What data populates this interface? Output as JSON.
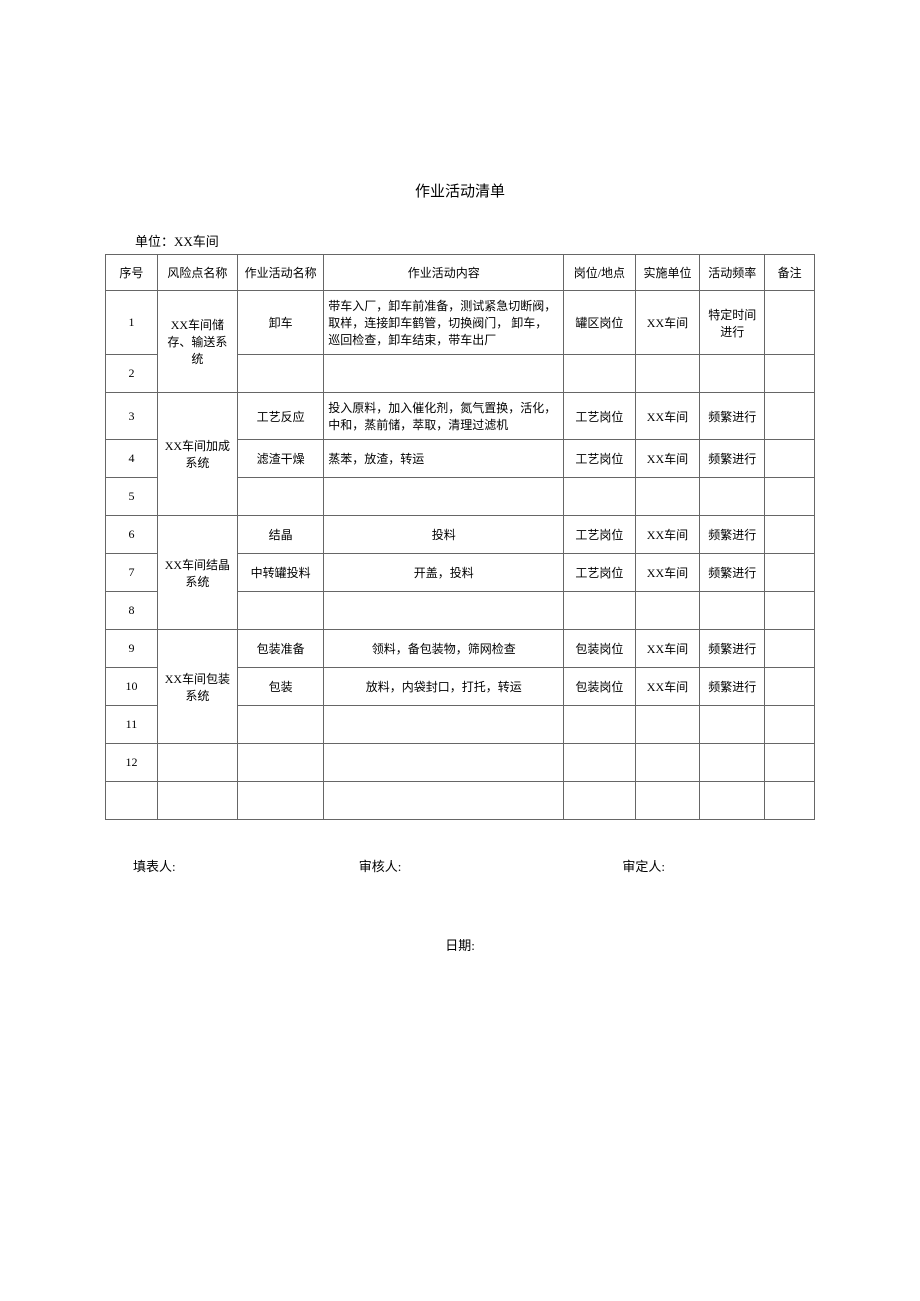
{
  "title": "作业活动清单",
  "unit_label": "单位：XX车间",
  "columns": {
    "seq": "序号",
    "risk": "风险点名称",
    "activity": "作业活动名称",
    "content": "作业活动内容",
    "post": "岗位/地点",
    "unit": "实施单位",
    "freq": "活动频率",
    "remark": "备注"
  },
  "risk_groups": [
    {
      "name": "XX车间储存、输送系统"
    },
    {
      "name": "XX车间加成系统"
    },
    {
      "name": "XX车间结晶系统"
    },
    {
      "name": "XX车间包装系统"
    }
  ],
  "rows": {
    "r1": {
      "seq": "1",
      "activity": "卸车",
      "content": "带车入厂，卸车前准备，测试紧急切断阀，取样，连接卸车鹤管，切换阀门，  卸车，巡回检查，卸车结束，带车出厂",
      "post": "罐区岗位",
      "unit": "XX车间",
      "freq": "特定时间进行",
      "remark": ""
    },
    "r2": {
      "seq": "2",
      "activity": "",
      "content": "",
      "post": "",
      "unit": "",
      "freq": "",
      "remark": ""
    },
    "r3": {
      "seq": "3",
      "activity": "工艺反应",
      "content": "投入原料，加入催化剂，氮气置换，活化，  中和，蒸前储，萃取，清理过滤机",
      "post": "工艺岗位",
      "unit": "XX车间",
      "freq": "频繁进行",
      "remark": ""
    },
    "r4": {
      "seq": "4",
      "activity": "滤渣干燥",
      "content": "蒸苯，放渣，转运",
      "post": "工艺岗位",
      "unit": "XX车间",
      "freq": "频繁进行",
      "remark": ""
    },
    "r5": {
      "seq": "5",
      "activity": "",
      "content": "",
      "post": "",
      "unit": "",
      "freq": "",
      "remark": ""
    },
    "r6": {
      "seq": "6",
      "activity": "结晶",
      "content": "投料",
      "post": "工艺岗位",
      "unit": "XX车间",
      "freq": "频繁进行",
      "remark": ""
    },
    "r7": {
      "seq": "7",
      "activity": "中转罐投料",
      "content": "开盖，投料",
      "post": "工艺岗位",
      "unit": "XX车间",
      "freq": "频繁进行",
      "remark": ""
    },
    "r8": {
      "seq": "8",
      "activity": "",
      "content": "",
      "post": "",
      "unit": "",
      "freq": "",
      "remark": ""
    },
    "r9": {
      "seq": "9",
      "activity": "包装准备",
      "content": "领料，备包装物，筛网检查",
      "post": "包装岗位",
      "unit": "XX车间",
      "freq": "频繁进行",
      "remark": ""
    },
    "r10": {
      "seq": "10",
      "activity": "包装",
      "content": "放料，内袋封口，打托，转运",
      "post": "包装岗位",
      "unit": "XX车间",
      "freq": "频繁进行",
      "remark": ""
    },
    "r11": {
      "seq": "11",
      "activity": "",
      "content": "",
      "post": "",
      "unit": "",
      "freq": "",
      "remark": ""
    },
    "r12": {
      "seq": "12",
      "activity": "",
      "content": "",
      "post": "",
      "unit": "",
      "freq": "",
      "remark": ""
    },
    "r13": {
      "seq": "",
      "activity": "",
      "content": "",
      "post": "",
      "unit": "",
      "freq": "",
      "remark": ""
    }
  },
  "signatures": {
    "filler": "填表人:",
    "reviewer": "审核人:",
    "approver": "审定人:"
  },
  "date_label": "日期:"
}
